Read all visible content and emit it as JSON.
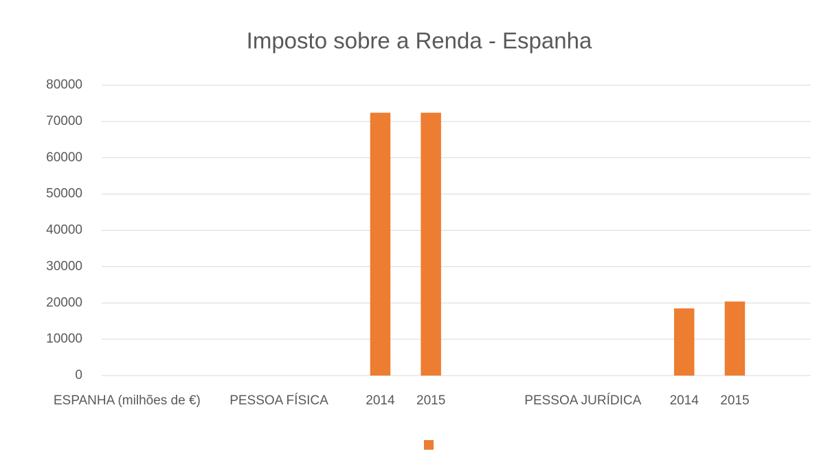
{
  "chart_data": {
    "type": "bar",
    "title": "Imposto sobre a Renda - Espanha",
    "categories": [
      "ESPANHA (milhões de €)",
      null,
      null,
      "PESSOA FÍSICA",
      null,
      "2014",
      "2015",
      null,
      null,
      "PESSOA JURÍDICA",
      null,
      "2014",
      "2015",
      null
    ],
    "series": [
      {
        "color": "#ed7d31",
        "values": [
          null,
          null,
          null,
          null,
          null,
          72400,
          72400,
          null,
          null,
          null,
          null,
          18500,
          20400,
          null
        ]
      }
    ],
    "ylim": [
      0,
      80000
    ],
    "yticks": [
      0,
      10000,
      20000,
      30000,
      40000,
      50000,
      60000,
      70000,
      80000
    ],
    "grid": true
  }
}
